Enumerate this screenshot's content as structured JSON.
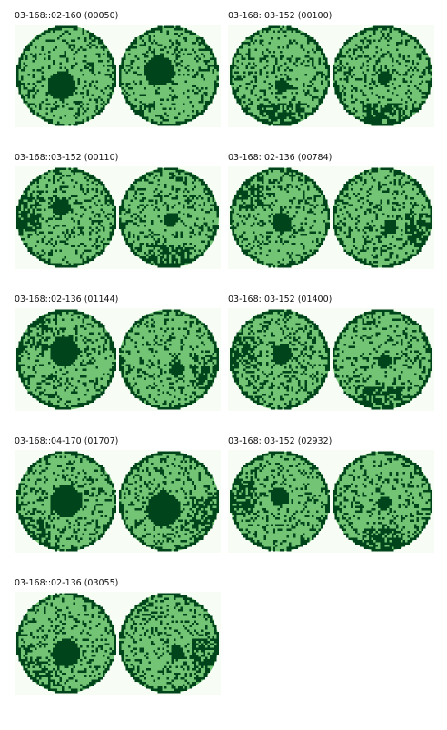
{
  "colors": {
    "background": "#f7fcf5",
    "wafer_light": "#74c476",
    "wafer_dark": "#00441b",
    "wafer_mid": "#238b45"
  },
  "panels": [
    {
      "title": "03-168::02-160 (00050)",
      "blobs": [
        {
          "spot": [
            0.45,
            0.6
          ],
          "r": 0.14,
          "edge": "none"
        },
        {
          "spot": [
            0.4,
            0.45
          ],
          "r": 0.15,
          "edge": "none"
        }
      ],
      "seed": 11
    },
    {
      "title": "03-168::03-152 (00100)",
      "blobs": [
        {
          "spot": [
            0.52,
            0.6
          ],
          "r": 0.07,
          "edge": "bottom"
        },
        {
          "spot": [
            0.52,
            0.52
          ],
          "r": 0.07,
          "edge": "bottom"
        }
      ],
      "seed": 23
    },
    {
      "title": "03-168::03-152 (00110)",
      "blobs": [
        {
          "spot": [
            0.45,
            0.4
          ],
          "r": 0.09,
          "edge": "left"
        },
        {
          "spot": [
            0.52,
            0.52
          ],
          "r": 0.07,
          "edge": "bottom"
        }
      ],
      "seed": 37
    },
    {
      "title": "03-168::02-136 (00784)",
      "blobs": [
        {
          "spot": [
            0.52,
            0.55
          ],
          "r": 0.1,
          "edge": "topleft"
        },
        {
          "spot": [
            0.58,
            0.6
          ],
          "r": 0.07,
          "edge": "right"
        }
      ],
      "seed": 41
    },
    {
      "title": "03-168::02-136 (01144)",
      "blobs": [
        {
          "spot": [
            0.48,
            0.42
          ],
          "r": 0.15,
          "edge": "topleft"
        },
        {
          "spot": [
            0.58,
            0.6
          ],
          "r": 0.07,
          "edge": "right"
        }
      ],
      "seed": 53
    },
    {
      "title": "03-168::03-152 (01400)",
      "blobs": [
        {
          "spot": [
            0.52,
            0.45
          ],
          "r": 0.1,
          "edge": "left"
        },
        {
          "spot": [
            0.52,
            0.52
          ],
          "r": 0.07,
          "edge": "bottom"
        }
      ],
      "seed": 67
    },
    {
      "title": "03-168::04-170 (01707)",
      "blobs": [
        {
          "spot": [
            0.5,
            0.5
          ],
          "r": 0.16,
          "edge": "bottomleft"
        },
        {
          "spot": [
            0.45,
            0.58
          ],
          "r": 0.17,
          "edge": "right"
        }
      ],
      "seed": 79
    },
    {
      "title": "03-168::03-152 (02932)",
      "blobs": [
        {
          "spot": [
            0.5,
            0.45
          ],
          "r": 0.09,
          "edge": "left"
        },
        {
          "spot": [
            0.52,
            0.52
          ],
          "r": 0.07,
          "edge": "bottom"
        }
      ],
      "seed": 83
    },
    {
      "title": "03-168::02-136 (03055)",
      "blobs": [
        {
          "spot": [
            0.5,
            0.6
          ],
          "r": 0.14,
          "edge": "bottomleft"
        },
        {
          "spot": [
            0.58,
            0.6
          ],
          "r": 0.07,
          "edge": "right"
        }
      ],
      "seed": 97
    }
  ]
}
